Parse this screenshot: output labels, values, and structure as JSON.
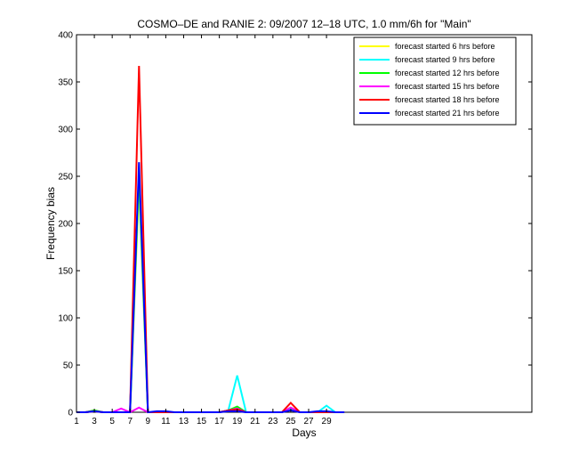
{
  "chart_data": {
    "type": "line",
    "title": "COSMO–DE and RANIE 2: 09/2007 12–18 UTC, 1.0 mm/6h for \"Main\"",
    "xlabel": "Days",
    "ylabel": "Frequency bias",
    "xlim": [
      1,
      52
    ],
    "ylim": [
      0,
      400
    ],
    "xticks": [
      1,
      3,
      5,
      7,
      9,
      11,
      13,
      15,
      17,
      19,
      21,
      23,
      25,
      27,
      29
    ],
    "yticks": [
      0,
      50,
      100,
      150,
      200,
      250,
      300,
      350,
      400
    ],
    "grid": false,
    "legend_position": "top-right",
    "series": [
      {
        "name": "forecast started 6 hrs before",
        "color": "#ffff00",
        "x": [
          1,
          2,
          3,
          4,
          5,
          6,
          7,
          8,
          9,
          10,
          11,
          12,
          13,
          14,
          15,
          16,
          17,
          18,
          19,
          20,
          21,
          22,
          23,
          24,
          25,
          26,
          27,
          28,
          29,
          30
        ],
        "y": [
          0,
          0,
          1,
          0,
          0,
          0,
          0,
          240,
          0,
          0,
          0,
          0,
          0,
          0,
          0,
          0,
          0,
          2,
          3,
          0,
          0,
          0,
          0,
          0,
          4,
          0,
          0,
          0,
          0,
          0
        ]
      },
      {
        "name": "forecast started 9 hrs before",
        "color": "#00ffff",
        "x": [
          1,
          2,
          3,
          4,
          5,
          6,
          7,
          8,
          9,
          10,
          11,
          12,
          13,
          14,
          15,
          16,
          17,
          18,
          19,
          20,
          21,
          22,
          23,
          24,
          25,
          26,
          27,
          28,
          29,
          30
        ],
        "y": [
          0,
          0,
          1,
          0,
          0,
          0,
          0,
          250,
          0,
          0,
          0,
          0,
          0,
          0,
          0,
          0,
          0,
          2,
          39,
          0,
          0,
          0,
          0,
          0,
          3,
          0,
          0,
          0,
          7,
          0
        ]
      },
      {
        "name": "forecast started 12 hrs before",
        "color": "#00ff00",
        "x": [
          1,
          2,
          3,
          4,
          5,
          6,
          7,
          8,
          9,
          10,
          11,
          12,
          13,
          14,
          15,
          16,
          17,
          18,
          19,
          20,
          21,
          22,
          23,
          24,
          25,
          26,
          27,
          28,
          29,
          30
        ],
        "y": [
          0,
          0,
          2,
          0,
          0,
          0,
          0,
          255,
          0,
          0,
          0,
          0,
          0,
          0,
          0,
          0,
          0,
          2,
          6,
          0,
          0,
          0,
          0,
          0,
          5,
          0,
          0,
          0,
          0,
          0
        ]
      },
      {
        "name": "forecast started 15 hrs before",
        "color": "#ff00ff",
        "x": [
          1,
          2,
          3,
          4,
          5,
          6,
          7,
          8,
          9,
          10,
          11,
          12,
          13,
          14,
          15,
          16,
          17,
          18,
          19,
          20,
          21,
          22,
          23,
          24,
          25,
          26,
          27,
          28,
          29,
          30
        ],
        "y": [
          0,
          0,
          1,
          0,
          0,
          4,
          0,
          5,
          0,
          0,
          0,
          0,
          0,
          0,
          0,
          0,
          0,
          2,
          4,
          0,
          0,
          0,
          0,
          0,
          5,
          0,
          0,
          0,
          0,
          0
        ]
      },
      {
        "name": "forecast started 18 hrs before",
        "color": "#ff0000",
        "x": [
          1,
          2,
          3,
          4,
          5,
          6,
          7,
          8,
          9,
          10,
          11,
          12,
          13,
          14,
          15,
          16,
          17,
          18,
          19,
          20,
          21,
          22,
          23,
          24,
          25,
          26,
          27,
          28,
          29,
          30
        ],
        "y": [
          0,
          0,
          1,
          0,
          0,
          0,
          0,
          367,
          0,
          0,
          0,
          0,
          0,
          0,
          0,
          0,
          0,
          2,
          3,
          0,
          0,
          0,
          0,
          0,
          10,
          0,
          0,
          0,
          0,
          0
        ]
      },
      {
        "name": "forecast started 21 hrs before",
        "color": "#0000ff",
        "x": [
          1,
          2,
          3,
          4,
          5,
          6,
          7,
          8,
          9,
          10,
          11,
          12,
          13,
          14,
          15,
          16,
          17,
          18,
          19,
          20,
          21,
          22,
          23,
          24,
          25,
          26,
          27,
          28,
          29,
          30,
          31
        ],
        "y": [
          0,
          0,
          1,
          0,
          0,
          0,
          0,
          265,
          0,
          1,
          1,
          0,
          0,
          0,
          0,
          0,
          0,
          1,
          1,
          0,
          0,
          0,
          0,
          0,
          2,
          0,
          0,
          1,
          1,
          0,
          0
        ]
      }
    ]
  }
}
